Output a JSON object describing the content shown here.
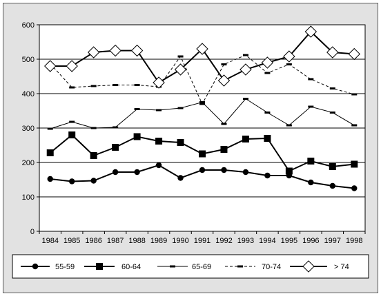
{
  "chart_data": {
    "type": "line",
    "title": "",
    "xlabel": "",
    "ylabel": "",
    "ylim": [
      0,
      600
    ],
    "yticks": [
      0,
      100,
      200,
      300,
      400,
      500,
      600
    ],
    "grid": "horizontal",
    "legend_placement": "bottom",
    "categories": [
      "1984",
      "1985",
      "1986",
      "1987",
      "1988",
      "1989",
      "1990",
      "1991",
      "1992",
      "1993",
      "1994",
      "1995",
      "1996",
      "1997",
      "1998"
    ],
    "series": [
      {
        "name": "55-59",
        "marker": "circle",
        "line": "solid",
        "line_weight": "bold",
        "values": [
          152,
          145,
          147,
          172,
          172,
          192,
          155,
          178,
          178,
          172,
          162,
          162,
          142,
          132,
          125
        ]
      },
      {
        "name": "60-64",
        "marker": "square",
        "line": "solid",
        "line_weight": "bold",
        "values": [
          228,
          280,
          220,
          244,
          275,
          262,
          258,
          225,
          238,
          268,
          270,
          175,
          204,
          188,
          195
        ]
      },
      {
        "name": "65-69",
        "marker": "dash",
        "line": "solid",
        "line_weight": "thin",
        "values": [
          298,
          318,
          300,
          302,
          355,
          352,
          358,
          375,
          312,
          385,
          345,
          308,
          362,
          345,
          308
        ]
      },
      {
        "name": "70-74",
        "marker": "dash",
        "line": "dashed",
        "line_weight": "thin",
        "values": [
          487,
          418,
          422,
          425,
          425,
          420,
          508,
          370,
          485,
          512,
          460,
          485,
          442,
          415,
          398
        ]
      },
      {
        "name": "> 74",
        "marker": "diamond",
        "line": "solid",
        "line_weight": "bold",
        "values": [
          480,
          480,
          520,
          525,
          525,
          432,
          470,
          530,
          438,
          470,
          490,
          508,
          580,
          520,
          515
        ]
      }
    ],
    "colors": {
      "background": "#e2e2e2",
      "plot_area": "#ffffff",
      "series": "#000000"
    }
  }
}
